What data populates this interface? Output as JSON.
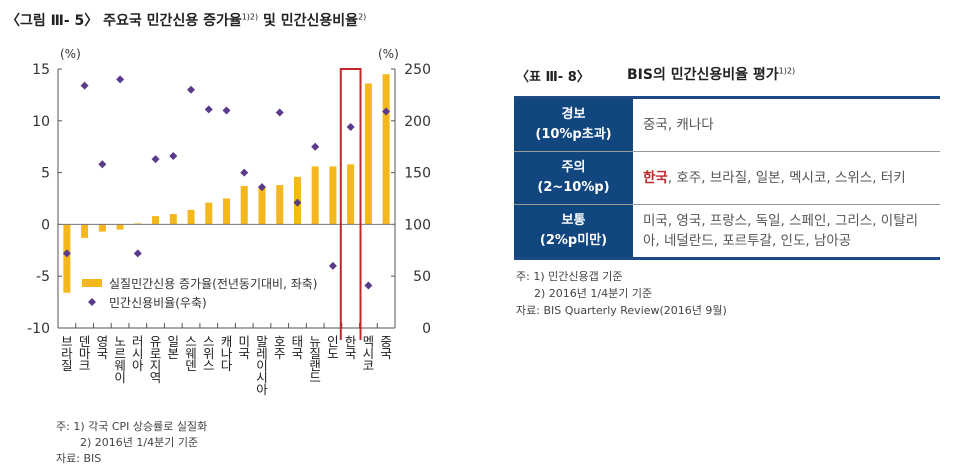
{
  "figure": {
    "title": "〈그림 Ⅲ- 5〉 주요국 민간신용 증가율",
    "title_sup1": "1)2)",
    "title_mid": " 및 민간신용비율",
    "title_sup2": "2)",
    "notes": [
      "주: 1) 각국 CPI 상승률로 실질화",
      "2) 2016년 1/4분기 기준",
      "자료: BIS"
    ]
  },
  "chart_data": {
    "type": "bar+scatter",
    "categories": [
      "브라질",
      "덴마크",
      "영국",
      "노르웨이",
      "러시아",
      "유로지역",
      "일본",
      "스웨덴",
      "스위스",
      "캐나다",
      "미국",
      "말레이시아",
      "호주",
      "태국",
      "뉴질랜드",
      "인도",
      "한국",
      "멕시코",
      "중국"
    ],
    "series": [
      {
        "name": "실질민간신용 증가율(전년동기대비, 좌축)",
        "type": "bar",
        "axis": "left",
        "color": "#f5b71e",
        "values": [
          -6.6,
          -1.3,
          -0.7,
          -0.5,
          0.1,
          0.8,
          1.0,
          1.4,
          2.1,
          2.5,
          3.7,
          3.6,
          3.8,
          4.6,
          5.6,
          5.6,
          5.8,
          13.6,
          14.5
        ]
      },
      {
        "name": "민간신용비율(우축)",
        "type": "scatter",
        "marker": "diamond",
        "axis": "right",
        "color": "#5a3a8a",
        "values": [
          72,
          234,
          158,
          240,
          72,
          163,
          166,
          230,
          211,
          210,
          150,
          136,
          208,
          121,
          175,
          60,
          194,
          41,
          209
        ]
      }
    ],
    "left_axis": {
      "unit": "(%)",
      "range": [
        -10,
        15
      ],
      "ticks": [
        "15",
        "10",
        "5",
        "0",
        "-5",
        "-10"
      ]
    },
    "right_axis": {
      "unit": "(%)",
      "range": [
        0,
        250
      ],
      "ticks": [
        "250",
        "200",
        "150",
        "100",
        "50",
        "0"
      ]
    },
    "highlight": {
      "category": "한국",
      "color": "#c0282d"
    },
    "legend_placement": "bottom-left",
    "grid": false
  },
  "table": {
    "title_label": "〈표 Ⅲ- 8〉",
    "title": "BIS의 민간신용비율 평가",
    "title_sup": "1)2)",
    "rows": [
      {
        "head1": "경보",
        "head2": "(10%p초과)",
        "highlight": "",
        "content": "중국, 캐나다"
      },
      {
        "head1": "주의",
        "head2": "(2~10%p)",
        "highlight": "한국",
        "content": ", 호주, 브라질, 일본, 멕시코, 스위스, 터키"
      },
      {
        "head1": "보통",
        "head2": "(2%p미만)",
        "highlight": "",
        "content": "미국, 영국, 프랑스, 독일, 스페인, 그리스, 이탈리아, 네덜란드, 포르투갈, 인도, 남아공"
      }
    ],
    "notes": [
      "주: 1) 민간신용갭 기준",
      "2) 2016년 1/4분기 기준",
      "자료: BIS Quarterly Review(2016년 9월)"
    ]
  }
}
